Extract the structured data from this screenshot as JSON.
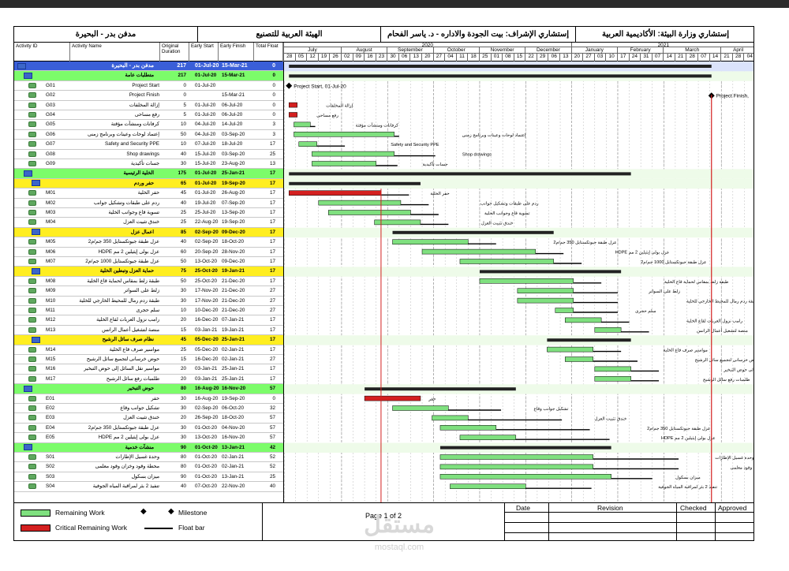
{
  "header": {
    "left": "مدفن بدر - البحيرة",
    "mid1": "الهيئة العربية للتصنيع",
    "mid2": "إستشاري الإشراف: بيت الجودة والاداره - د. ياسر الفحام",
    "right": "إستشاري وزارة البيئة: الأكاديمية العربية"
  },
  "columns": {
    "id": "Activity ID",
    "name": "Activity Name",
    "dur": "Original Duration",
    "start": "Early Start",
    "finish": "Early Finish",
    "tf": "Total Float"
  },
  "timescale": {
    "years": [
      {
        "label": "2020",
        "from": 0,
        "to": 25
      },
      {
        "label": "2021",
        "from": 25,
        "to": 41
      }
    ],
    "months": [
      {
        "label": "July",
        "from": 0,
        "to": 5
      },
      {
        "label": "August",
        "from": 5,
        "to": 9
      },
      {
        "label": "September",
        "from": 9,
        "to": 13
      },
      {
        "label": "October",
        "from": 13,
        "to": 17
      },
      {
        "label": "November",
        "from": 17,
        "to": 21
      },
      {
        "label": "December",
        "from": 21,
        "to": 25
      },
      {
        "label": "January",
        "from": 25,
        "to": 29
      },
      {
        "label": "February",
        "from": 29,
        "to": 33
      },
      {
        "label": "March",
        "from": 33,
        "to": 38
      },
      {
        "label": "April",
        "from": 38,
        "to": 41
      }
    ],
    "weeks": [
      "28",
      "05",
      "12",
      "19",
      "26",
      "02",
      "09",
      "16",
      "23",
      "30",
      "06",
      "13",
      "20",
      "27",
      "04",
      "11",
      "18",
      "25",
      "01",
      "08",
      "15",
      "22",
      "29",
      "06",
      "13",
      "20",
      "27",
      "03",
      "10",
      "17",
      "24",
      "31",
      "07",
      "14",
      "21",
      "28",
      "07",
      "14",
      "21",
      "28",
      "04"
    ]
  },
  "activities": [
    {
      "lvl": "wbs1",
      "id": "",
      "name": "مدفن بدر - البحيرة",
      "dur": "217",
      "start": "01-Jul-20",
      "finish": "15-Mar-21",
      "tf": "0"
    },
    {
      "lvl": "wbs2",
      "id": "",
      "name": "متطلبات عامة",
      "dur": "217",
      "start": "01-Jul-20",
      "finish": "15-Mar-21",
      "tf": "0"
    },
    {
      "lvl": "task",
      "id": "G01",
      "name": "Project Start",
      "dur": "0",
      "start": "01-Jul-20",
      "finish": "",
      "tf": "0"
    },
    {
      "lvl": "task",
      "id": "G02",
      "name": "Project Finish",
      "dur": "0",
      "start": "",
      "finish": "15-Mar-21",
      "tf": "0"
    },
    {
      "lvl": "task",
      "id": "G03",
      "name": "إزالة المخلفات",
      "dur": "5",
      "start": "01-Jul-20",
      "finish": "06-Jul-20",
      "tf": "0"
    },
    {
      "lvl": "task",
      "id": "G04",
      "name": "رفع مساحى",
      "dur": "5",
      "start": "01-Jul-20",
      "finish": "06-Jul-20",
      "tf": "0"
    },
    {
      "lvl": "task",
      "id": "G05",
      "name": "كرفانات ومنشآت مؤقتة",
      "dur": "10",
      "start": "04-Jul-20",
      "finish": "14-Jul-20",
      "tf": "3"
    },
    {
      "lvl": "task",
      "id": "G06",
      "name": "إعتماد لوحات وعينات وبرنامج زمنى",
      "dur": "50",
      "start": "04-Jul-20",
      "finish": "03-Sep-20",
      "tf": "3"
    },
    {
      "lvl": "task",
      "id": "G07",
      "name": "Safety and Security PPE",
      "dur": "10",
      "start": "07-Jul-20",
      "finish": "18-Jul-20",
      "tf": "17"
    },
    {
      "lvl": "task",
      "id": "G08",
      "name": "Shop drawings",
      "dur": "40",
      "start": "15-Jul-20",
      "finish": "03-Sep-20",
      "tf": "25"
    },
    {
      "lvl": "task",
      "id": "G09",
      "name": "جسات تأكيدية",
      "dur": "30",
      "start": "15-Jul-20",
      "finish": "23-Aug-20",
      "tf": "13"
    },
    {
      "lvl": "wbs2",
      "id": "",
      "name": "الخلية الرئيسية",
      "dur": "175",
      "start": "01-Jul-20",
      "finish": "25-Jan-21",
      "tf": "17"
    },
    {
      "lvl": "wbs3",
      "id": "",
      "name": "حفر وردم",
      "dur": "65",
      "start": "01-Jul-20",
      "finish": "19-Sep-20",
      "tf": "17"
    },
    {
      "lvl": "task",
      "id": "M01",
      "name": "حفر الخلية",
      "dur": "45",
      "start": "01-Jul-20",
      "finish": "26-Aug-20",
      "tf": "17"
    },
    {
      "lvl": "task",
      "id": "M02",
      "name": "ردم على طبقات وتشكيل جوانب",
      "dur": "40",
      "start": "19-Jul-20",
      "finish": "07-Sep-20",
      "tf": "17"
    },
    {
      "lvl": "task",
      "id": "M03",
      "name": "تسوية قاع وجوانب الخلية",
      "dur": "25",
      "start": "25-Jul-20",
      "finish": "13-Sep-20",
      "tf": "17"
    },
    {
      "lvl": "task",
      "id": "M04",
      "name": "خندق تثبيت العزل",
      "dur": "25",
      "start": "22-Aug-20",
      "finish": "19-Sep-20",
      "tf": "17"
    },
    {
      "lvl": "wbs3",
      "id": "",
      "name": "اعمال عزل",
      "dur": "85",
      "start": "02-Sep-20",
      "finish": "09-Dec-20",
      "tf": "17"
    },
    {
      "lvl": "task",
      "id": "M05",
      "name": "عزل طبقة جيوتكستايل 350 جم/م2",
      "dur": "40",
      "start": "02-Sep-20",
      "finish": "18-Oct-20",
      "tf": "17"
    },
    {
      "lvl": "task",
      "id": "M06",
      "name": "عزل بولى إيثيلين 2 مم HDPE",
      "dur": "60",
      "start": "20-Sep-20",
      "finish": "28-Nov-20",
      "tf": "17"
    },
    {
      "lvl": "task",
      "id": "M07",
      "name": "عزل طبقة جيوتكستايل 1000 جم/م2",
      "dur": "50",
      "start": "13-Oct-20",
      "finish": "09-Dec-20",
      "tf": "17"
    },
    {
      "lvl": "wbs3",
      "id": "",
      "name": "حماية العزل وتبطين الخلية",
      "dur": "75",
      "start": "25-Oct-20",
      "finish": "19-Jan-21",
      "tf": "17"
    },
    {
      "lvl": "task",
      "id": "M08",
      "name": "طبقة زلط بمقاس لحماية قاع الخلية",
      "dur": "50",
      "start": "25-Oct-20",
      "finish": "21-Dec-20",
      "tf": "17"
    },
    {
      "lvl": "task",
      "id": "M09",
      "name": "زلط على السواتر",
      "dur": "30",
      "start": "17-Nov-20",
      "finish": "21-Dec-20",
      "tf": "27"
    },
    {
      "lvl": "task",
      "id": "M10",
      "name": "طبقة ردم رمال للمحيط الخارجي للخلية",
      "dur": "30",
      "start": "17-Nov-20",
      "finish": "21-Dec-20",
      "tf": "27"
    },
    {
      "lvl": "task",
      "id": "M11",
      "name": "سلم حجرى",
      "dur": "10",
      "start": "10-Dec-20",
      "finish": "21-Dec-20",
      "tf": "27"
    },
    {
      "lvl": "task",
      "id": "M12",
      "name": "رامب نزول العربات لقاع الخلية",
      "dur": "20",
      "start": "16-Dec-20",
      "finish": "07-Jan-21",
      "tf": "17"
    },
    {
      "lvl": "task",
      "id": "M13",
      "name": "منصة لتشغيل أعمال الرانس",
      "dur": "15",
      "start": "03-Jan-21",
      "finish": "19-Jan-21",
      "tf": "17"
    },
    {
      "lvl": "wbs3",
      "id": "",
      "name": "نظام صرف سائل الرشيح",
      "dur": "45",
      "start": "05-Dec-20",
      "finish": "25-Jan-21",
      "tf": "17"
    },
    {
      "lvl": "task",
      "id": "M14",
      "name": "مواسير صرف قاع الخلية",
      "dur": "25",
      "start": "05-Dec-20",
      "finish": "02-Jan-21",
      "tf": "17"
    },
    {
      "lvl": "task",
      "id": "M15",
      "name": "حوض خرسانى لتجميع سائل الرشيح",
      "dur": "15",
      "start": "16-Dec-20",
      "finish": "02-Jan-21",
      "tf": "27"
    },
    {
      "lvl": "task",
      "id": "M16",
      "name": "مواسير نقل السائل إلى حوض التبخير",
      "dur": "20",
      "start": "03-Jan-21",
      "finish": "25-Jan-21",
      "tf": "17"
    },
    {
      "lvl": "task",
      "id": "M17",
      "name": "طلمبات رفع سائل الرشيح",
      "dur": "20",
      "start": "03-Jan-21",
      "finish": "25-Jan-21",
      "tf": "17"
    },
    {
      "lvl": "wbs2",
      "id": "",
      "name": "حوض التبخير",
      "dur": "80",
      "start": "16-Aug-20",
      "finish": "16-Nov-20",
      "tf": "57"
    },
    {
      "lvl": "task",
      "id": "E01",
      "name": "حفر",
      "dur": "30",
      "start": "16-Aug-20",
      "finish": "19-Sep-20",
      "tf": "0"
    },
    {
      "lvl": "task",
      "id": "E02",
      "name": "تشكيل جوانب وقاع",
      "dur": "30",
      "start": "02-Sep-20",
      "finish": "06-Oct-20",
      "tf": "32"
    },
    {
      "lvl": "task",
      "id": "E03",
      "name": "خندق تثبيت العزل",
      "dur": "20",
      "start": "26-Sep-20",
      "finish": "18-Oct-20",
      "tf": "57"
    },
    {
      "lvl": "task",
      "id": "E04",
      "name": "عزل طبقة جيوتكستايل 350 جم/م2",
      "dur": "30",
      "start": "01-Oct-20",
      "finish": "04-Nov-20",
      "tf": "57"
    },
    {
      "lvl": "task",
      "id": "E05",
      "name": "عزل بولى إيثيلين 2 مم HDPE",
      "dur": "30",
      "start": "13-Oct-20",
      "finish": "16-Nov-20",
      "tf": "57"
    },
    {
      "lvl": "wbs2",
      "id": "",
      "name": "منشآت خدمية",
      "dur": "90",
      "start": "01-Oct-20",
      "finish": "13-Jan-21",
      "tf": "42"
    },
    {
      "lvl": "task",
      "id": "S01",
      "name": "وحدة غسيل الإطارات",
      "dur": "80",
      "start": "01-Oct-20",
      "finish": "02-Jan-21",
      "tf": "52"
    },
    {
      "lvl": "task",
      "id": "S02",
      "name": "محطة وقود وخزان وقود معلمى",
      "dur": "80",
      "start": "01-Oct-20",
      "finish": "02-Jan-21",
      "tf": "52"
    },
    {
      "lvl": "task",
      "id": "S03",
      "name": "ميزان بسكول",
      "dur": "90",
      "start": "01-Oct-20",
      "finish": "13-Jan-21",
      "tf": "25"
    },
    {
      "lvl": "task",
      "id": "S04",
      "name": "تنفيذ 2 بئر لمراقبة المياه الجوفية",
      "dur": "40",
      "start": "07-Oct-20",
      "finish": "22-Nov-20",
      "tf": "40"
    }
  ],
  "gantt_labels": {
    "G01": "Project Start, 01-Jul-20",
    "G02": "Project Finish,"
  },
  "legend": {
    "remaining": "Remaining Work",
    "critical": "Critical Remaining Work",
    "milestone": "Milestone",
    "float": "Float bar",
    "page": "Page 1 of 2",
    "date": "Date",
    "revision": "Revision",
    "checked": "Checked",
    "approved": "Approved"
  },
  "watermark": {
    "main": "مستقل",
    "sub": "mostaql.com"
  },
  "colors": {
    "wbs1": "#3a5fd8",
    "wbs2": "#7cfc6a",
    "wbs3": "#ffee20",
    "bar": "#7fe07f",
    "critical": "#d42020",
    "float": "#000000"
  }
}
